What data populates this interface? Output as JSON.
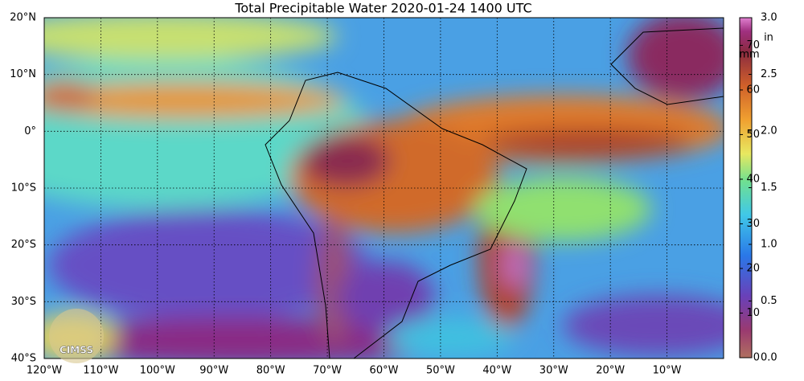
{
  "title": "Total Precipitable Water  2020-01-24 1400 UTC",
  "map": {
    "lon_range": [
      -120,
      0
    ],
    "lat_range": [
      -40,
      20
    ],
    "lon_ticks": [
      {
        "value": -120,
        "label": "120°W"
      },
      {
        "value": -110,
        "label": "110°W"
      },
      {
        "value": -100,
        "label": "100°W"
      },
      {
        "value": -90,
        "label": "90°W"
      },
      {
        "value": -80,
        "label": "80°W"
      },
      {
        "value": -70,
        "label": "70°W"
      },
      {
        "value": -60,
        "label": "60°W"
      },
      {
        "value": -50,
        "label": "50°W"
      },
      {
        "value": -40,
        "label": "40°W"
      },
      {
        "value": -30,
        "label": "30°W"
      },
      {
        "value": -20,
        "label": "20°W"
      },
      {
        "value": -10,
        "label": "10°W"
      }
    ],
    "lat_ticks": [
      {
        "value": 20,
        "label": "20°N"
      },
      {
        "value": 10,
        "label": "10°N"
      },
      {
        "value": 0,
        "label": "0°"
      },
      {
        "value": -10,
        "label": "10°S"
      },
      {
        "value": -20,
        "label": "20°S"
      },
      {
        "value": -30,
        "label": "30°S"
      },
      {
        "value": -40,
        "label": "40°S"
      }
    ],
    "logo": "CIMSS"
  },
  "colorbar": {
    "mm_range": [
      0,
      76.2
    ],
    "mm_unit": "mm",
    "mm_ticks": [
      0,
      10,
      20,
      30,
      40,
      50,
      60,
      70
    ],
    "in_range": [
      0,
      3
    ],
    "in_unit": "in",
    "in_ticks": [
      {
        "value": 0,
        "label": "0.0"
      },
      {
        "value": 0.5,
        "label": "0.5"
      },
      {
        "value": 1,
        "label": "1.0"
      },
      {
        "value": 1.5,
        "label": "1.5"
      },
      {
        "value": 2,
        "label": "2.0"
      },
      {
        "value": 2.5,
        "label": "2.5"
      },
      {
        "value": 3,
        "label": "3.0"
      }
    ]
  }
}
